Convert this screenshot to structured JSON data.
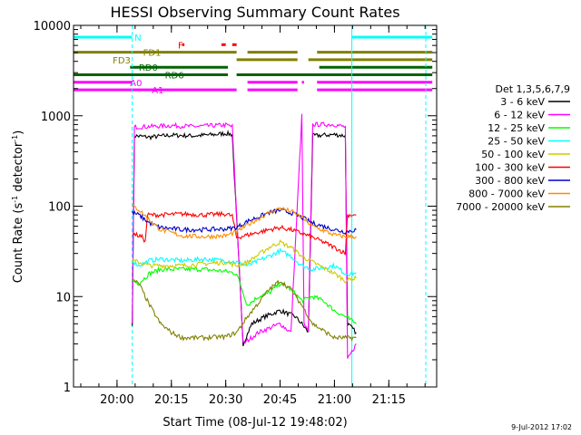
{
  "chart_data": {
    "type": "line",
    "title": "HESSI Observing Summary Count Rates",
    "xlabel": "Start Time (08-Jul-12 19:48:02)",
    "ylabel": "Count Rate (s⁻¹ detector⁻¹)",
    "ylabel_parts": {
      "main": "Count Rate (s",
      "exp1": "-1",
      "mid": " detector",
      "exp2": "-1",
      "end": ")"
    },
    "yscale": "log",
    "xlim": [
      19.8,
      21.47
    ],
    "ylim": [
      1,
      10000
    ],
    "x_ticks": [
      {
        "value": 20.0,
        "label": "20:00"
      },
      {
        "value": 20.25,
        "label": "20:15"
      },
      {
        "value": 20.5,
        "label": "20:30"
      },
      {
        "value": 20.75,
        "label": "20:45"
      },
      {
        "value": 21.0,
        "label": "21:00"
      },
      {
        "value": 21.25,
        "label": "21:15"
      }
    ],
    "y_ticks": [
      {
        "value": 1,
        "label": "1"
      },
      {
        "value": 10,
        "label": "10"
      },
      {
        "value": 100,
        "label": "100"
      },
      {
        "value": 1000,
        "label": "1000"
      },
      {
        "value": 10000,
        "label": "10000"
      }
    ],
    "legend_title": "Det 1,3,5,6,7,9",
    "series": [
      {
        "name": "3 - 6 keV",
        "color": "#000000",
        "points": [
          [
            20.07,
            5
          ],
          [
            20.08,
            600
          ],
          [
            20.15,
            580
          ],
          [
            20.25,
            610
          ],
          [
            20.35,
            600
          ],
          [
            20.45,
            620
          ],
          [
            20.5,
            640
          ],
          [
            20.53,
            620
          ],
          [
            20.58,
            3
          ],
          [
            20.62,
            5
          ],
          [
            20.68,
            6
          ],
          [
            20.75,
            7
          ],
          [
            20.82,
            6
          ],
          [
            20.85,
            5
          ],
          [
            20.88,
            4
          ],
          [
            20.9,
            600
          ],
          [
            21.0,
            620
          ],
          [
            21.05,
            600
          ],
          [
            21.06,
            5
          ],
          [
            21.1,
            4
          ]
        ]
      },
      {
        "name": "6 - 12 keV",
        "color": "#ff00ff",
        "points": [
          [
            20.07,
            5
          ],
          [
            20.08,
            750
          ],
          [
            20.15,
            760
          ],
          [
            20.25,
            780
          ],
          [
            20.35,
            760
          ],
          [
            20.45,
            780
          ],
          [
            20.5,
            790
          ],
          [
            20.53,
            760
          ],
          [
            20.58,
            3
          ],
          [
            20.65,
            4
          ],
          [
            20.75,
            5
          ],
          [
            20.8,
            4
          ],
          [
            20.85,
            1000
          ],
          [
            20.86,
            5
          ],
          [
            20.88,
            4
          ],
          [
            20.9,
            800
          ],
          [
            21.0,
            800
          ],
          [
            21.05,
            750
          ],
          [
            21.06,
            2
          ],
          [
            21.1,
            3
          ]
        ]
      },
      {
        "name": "12 - 25 keV",
        "color": "#00ff00",
        "points": [
          [
            20.07,
            15
          ],
          [
            20.1,
            14
          ],
          [
            20.15,
            18
          ],
          [
            20.2,
            20
          ],
          [
            20.3,
            20
          ],
          [
            20.4,
            20
          ],
          [
            20.5,
            19
          ],
          [
            20.55,
            18
          ],
          [
            20.6,
            8
          ],
          [
            20.65,
            10
          ],
          [
            20.7,
            11
          ],
          [
            20.75,
            14
          ],
          [
            20.8,
            12
          ],
          [
            20.85,
            9
          ],
          [
            20.9,
            10
          ],
          [
            20.95,
            9
          ],
          [
            21.0,
            7
          ],
          [
            21.05,
            6
          ],
          [
            21.1,
            5
          ]
        ]
      },
      {
        "name": "25 - 50 keV",
        "color": "#00ffff",
        "points": [
          [
            20.07,
            25
          ],
          [
            20.1,
            22
          ],
          [
            20.15,
            25
          ],
          [
            20.2,
            26
          ],
          [
            20.3,
            25
          ],
          [
            20.4,
            26
          ],
          [
            20.5,
            25
          ],
          [
            20.55,
            24
          ],
          [
            20.6,
            22
          ],
          [
            20.7,
            28
          ],
          [
            20.75,
            32
          ],
          [
            20.8,
            28
          ],
          [
            20.85,
            22
          ],
          [
            20.9,
            20
          ],
          [
            21.0,
            22
          ],
          [
            21.05,
            18
          ],
          [
            21.1,
            18
          ]
        ]
      },
      {
        "name": "50 - 100 keV",
        "color": "#cccc00",
        "points": [
          [
            20.07,
            25
          ],
          [
            20.1,
            24
          ],
          [
            20.15,
            22
          ],
          [
            20.2,
            22
          ],
          [
            20.3,
            22
          ],
          [
            20.4,
            23
          ],
          [
            20.5,
            24
          ],
          [
            20.55,
            22
          ],
          [
            20.6,
            24
          ],
          [
            20.7,
            35
          ],
          [
            20.75,
            40
          ],
          [
            20.8,
            35
          ],
          [
            20.85,
            28
          ],
          [
            20.9,
            24
          ],
          [
            21.0,
            18
          ],
          [
            21.05,
            15
          ],
          [
            21.1,
            16
          ]
        ]
      },
      {
        "name": "100 - 300 keV",
        "color": "#ff0000",
        "points": [
          [
            20.07,
            50
          ],
          [
            20.12,
            45
          ],
          [
            20.13,
            40
          ],
          [
            20.14,
            80
          ],
          [
            20.2,
            80
          ],
          [
            20.3,
            82
          ],
          [
            20.4,
            80
          ],
          [
            20.5,
            82
          ],
          [
            20.53,
            78
          ],
          [
            20.55,
            45
          ],
          [
            20.6,
            48
          ],
          [
            20.7,
            55
          ],
          [
            20.75,
            58
          ],
          [
            20.8,
            55
          ],
          [
            20.85,
            50
          ],
          [
            20.9,
            45
          ],
          [
            20.95,
            40
          ],
          [
            21.0,
            35
          ],
          [
            21.05,
            30
          ],
          [
            21.06,
            80
          ],
          [
            21.1,
            80
          ]
        ]
      },
      {
        "name": "300 - 800 keV",
        "color": "#0000cc",
        "points": [
          [
            20.07,
            85
          ],
          [
            20.1,
            80
          ],
          [
            20.15,
            65
          ],
          [
            20.2,
            58
          ],
          [
            20.3,
            55
          ],
          [
            20.4,
            55
          ],
          [
            20.5,
            56
          ],
          [
            20.55,
            58
          ],
          [
            20.6,
            68
          ],
          [
            20.7,
            85
          ],
          [
            20.75,
            90
          ],
          [
            20.8,
            85
          ],
          [
            20.85,
            75
          ],
          [
            20.9,
            65
          ],
          [
            21.0,
            55
          ],
          [
            21.05,
            52
          ],
          [
            21.1,
            55
          ]
        ]
      },
      {
        "name": "800 - 7000 keV",
        "color": "#ff8c00",
        "points": [
          [
            20.07,
            100
          ],
          [
            20.1,
            92
          ],
          [
            20.15,
            70
          ],
          [
            20.2,
            55
          ],
          [
            20.3,
            47
          ],
          [
            20.4,
            46
          ],
          [
            20.5,
            47
          ],
          [
            20.55,
            52
          ],
          [
            20.6,
            62
          ],
          [
            20.7,
            85
          ],
          [
            20.75,
            95
          ],
          [
            20.8,
            88
          ],
          [
            20.85,
            75
          ],
          [
            20.9,
            60
          ],
          [
            21.0,
            48
          ],
          [
            21.05,
            46
          ],
          [
            21.1,
            46
          ]
        ]
      },
      {
        "name": "7000 - 20000 keV",
        "color": "#808000",
        "points": [
          [
            20.07,
            15
          ],
          [
            20.1,
            14
          ],
          [
            20.15,
            8
          ],
          [
            20.2,
            5
          ],
          [
            20.25,
            4
          ],
          [
            20.3,
            3.5
          ],
          [
            20.4,
            3.5
          ],
          [
            20.5,
            3.6
          ],
          [
            20.55,
            4
          ],
          [
            20.6,
            6
          ],
          [
            20.7,
            12
          ],
          [
            20.75,
            15
          ],
          [
            20.8,
            12
          ],
          [
            20.85,
            8
          ],
          [
            20.9,
            5
          ],
          [
            21.0,
            3.5
          ],
          [
            21.05,
            3.5
          ],
          [
            21.1,
            3.5
          ]
        ]
      }
    ],
    "flags": [
      {
        "label": "N",
        "color": "#00ffff",
        "level": 0,
        "label_at": 20.08,
        "segments": [
          [
            19.8,
            20.07
          ],
          [
            21.08,
            21.45
          ]
        ]
      },
      {
        "label": "F",
        "color": "#ff0000",
        "level": 1,
        "label_at": 20.28,
        "segments": [
          [
            20.3,
            20.31
          ],
          [
            20.48,
            20.5
          ],
          [
            20.53,
            20.55
          ]
        ]
      },
      {
        "label": "FD1",
        "color": "#808000",
        "level": 2,
        "label_at": 20.12,
        "segments": [
          [
            19.8,
            20.55
          ],
          [
            20.6,
            20.83
          ],
          [
            20.92,
            21.45
          ]
        ]
      },
      {
        "label": "FD3",
        "color": "#808000",
        "level": 3,
        "label_at": 19.98,
        "segments": [
          [
            20.55,
            20.83
          ],
          [
            20.88,
            21.45
          ]
        ]
      },
      {
        "label": "RD0",
        "color": "#006400",
        "level": 4,
        "label_at": 20.1,
        "segments": [
          [
            20.06,
            20.51
          ],
          [
            20.93,
            21.45
          ]
        ]
      },
      {
        "label": "RD6",
        "color": "#006400",
        "level": 5,
        "label_at": 20.22,
        "segments": [
          [
            19.8,
            20.51
          ],
          [
            20.55,
            20.9
          ],
          [
            20.9,
            21.45
          ]
        ]
      },
      {
        "label": "A0",
        "color": "#ff00ff",
        "level": 6,
        "label_at": 20.06,
        "segments": [
          [
            19.8,
            20.07
          ],
          [
            20.6,
            20.83
          ],
          [
            20.85,
            20.86
          ],
          [
            20.92,
            21.45
          ]
        ]
      },
      {
        "label": "A1",
        "color": "#ff00ff",
        "level": 7,
        "label_at": 20.16,
        "segments": [
          [
            19.8,
            20.55
          ],
          [
            20.6,
            20.83
          ],
          [
            20.92,
            21.45
          ]
        ]
      }
    ],
    "attenuator_lines": [
      {
        "x": 20.07,
        "color": "#00ffff",
        "style": "dashed"
      },
      {
        "x": 21.08,
        "color": "#00ffff",
        "style": "solid"
      },
      {
        "x": 21.42,
        "color": "#00ffff",
        "style": "dashed"
      }
    ],
    "grid": false,
    "legend_position": "right"
  },
  "timestamp": "9-Jul-2012 17:02"
}
